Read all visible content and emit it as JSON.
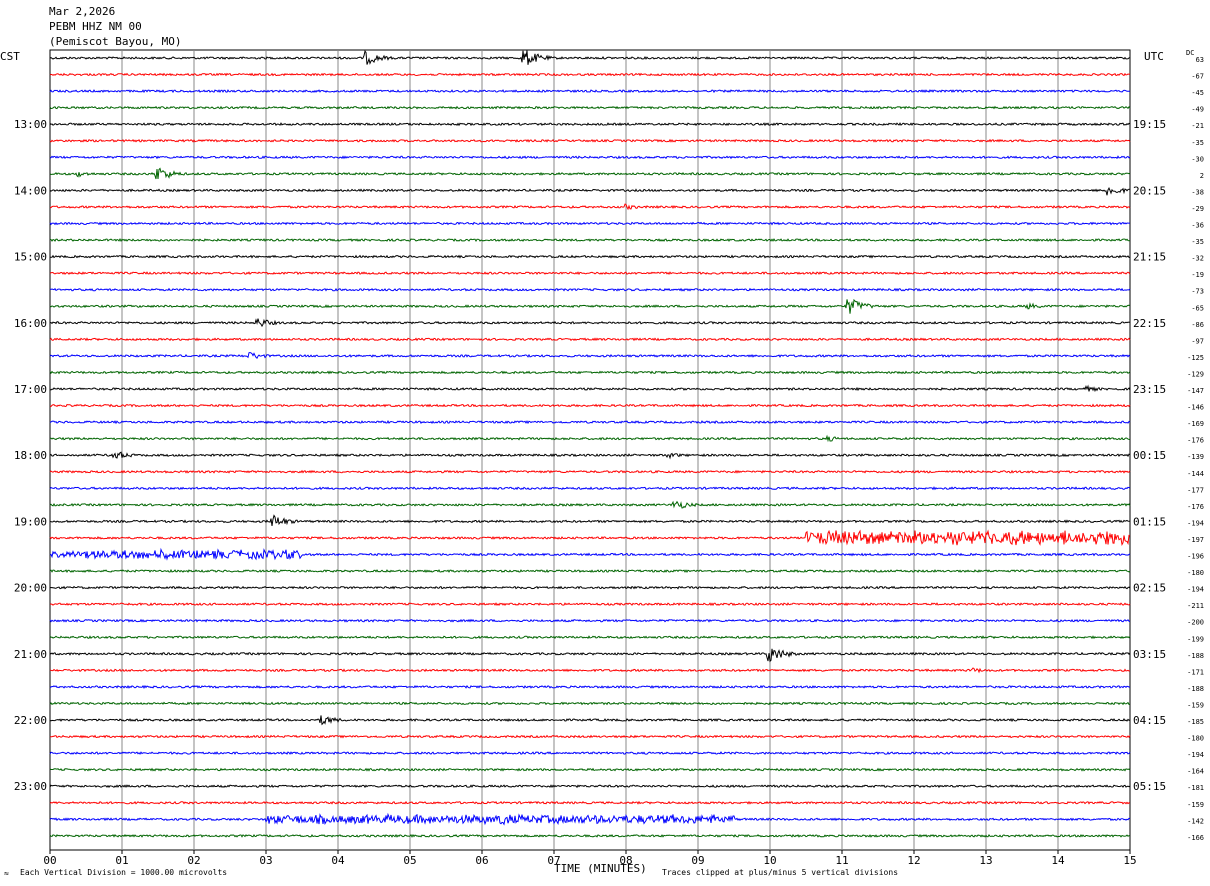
{
  "header": {
    "date": "Mar 2,2026",
    "station": "PEBM HHZ NM 00",
    "location": "(Pemiscot Bayou, MO)"
  },
  "labels": {
    "left_tz": "CST",
    "right_tz": "UTC",
    "dc_label": "DC",
    "xlabel": "TIME (MINUTES)",
    "scale_note": "Each Vertical Division = 1000.00 microvolts",
    "clip_note": "Traces clipped at plus/minus 5 vertical divisions",
    "corner_mark": "≈"
  },
  "colors": [
    "#000000",
    "#ff0000",
    "#0000ff",
    "#006400"
  ],
  "chart_data": {
    "type": "line",
    "title": "Mar 2,2026 PEBM HHZ NM 00 (Pemiscot Bayou, MO)",
    "xlabel": "TIME (MINUTES)",
    "x_ticks": [
      "00",
      "01",
      "02",
      "03",
      "04",
      "05",
      "06",
      "07",
      "08",
      "09",
      "10",
      "11",
      "12",
      "13",
      "14",
      "15"
    ],
    "xlim": [
      0,
      15
    ],
    "left_time_labels": [
      "13:00",
      "14:00",
      "15:00",
      "16:00",
      "17:00",
      "18:00",
      "19:00",
      "20:00",
      "21:00",
      "22:00",
      "23:00"
    ],
    "right_time_labels": [
      "19:15",
      "20:15",
      "21:15",
      "22:15",
      "23:15",
      "00:15",
      "01:15",
      "02:15",
      "03:15",
      "04:15",
      "05:15"
    ],
    "dc_offsets": [
      63,
      -67,
      -45,
      -49,
      -21,
      -35,
      -30,
      2,
      -38,
      -29,
      -36,
      -35,
      -32,
      -19,
      -73,
      -65,
      -86,
      -97,
      -125,
      -129,
      -147,
      -146,
      -169,
      -176,
      -139,
      -144,
      -177,
      -176,
      -194,
      -197,
      -196,
      -180,
      -194,
      -211,
      -200,
      -199,
      -188,
      -171,
      -188,
      -159,
      -185,
      -180,
      -194,
      -164,
      -181,
      -159,
      -142,
      -166
    ],
    "trace_count": 48,
    "trace_colors_cycle": [
      "black",
      "red",
      "blue",
      "green"
    ],
    "events": [
      {
        "trace": 0,
        "minute": 4.4,
        "amplitude": 7
      },
      {
        "trace": 0,
        "minute": 6.6,
        "amplitude": 9
      },
      {
        "trace": 7,
        "minute": 0.4,
        "amplitude": 3
      },
      {
        "trace": 7,
        "minute": 1.5,
        "amplitude": 8
      },
      {
        "trace": 8,
        "minute": 14.7,
        "amplitude": 6
      },
      {
        "trace": 9,
        "minute": 8.0,
        "amplitude": 3
      },
      {
        "trace": 15,
        "minute": 11.1,
        "amplitude": 9
      },
      {
        "trace": 15,
        "minute": 13.6,
        "amplitude": 3
      },
      {
        "trace": 16,
        "minute": 2.9,
        "amplitude": 5
      },
      {
        "trace": 18,
        "minute": 2.8,
        "amplitude": 4
      },
      {
        "trace": 20,
        "minute": 14.4,
        "amplitude": 3
      },
      {
        "trace": 23,
        "minute": 10.8,
        "amplitude": 3
      },
      {
        "trace": 24,
        "minute": 0.9,
        "amplitude": 5
      },
      {
        "trace": 24,
        "minute": 8.6,
        "amplitude": 3
      },
      {
        "trace": 27,
        "minute": 8.7,
        "amplitude": 5
      },
      {
        "trace": 28,
        "minute": 3.1,
        "amplitude": 7
      },
      {
        "trace": 36,
        "minute": 10.0,
        "amplitude": 9
      },
      {
        "trace": 37,
        "minute": 12.8,
        "amplitude": 3
      },
      {
        "trace": 40,
        "minute": 3.8,
        "amplitude": 5
      },
      {
        "trace": 46,
        "minute": 6.3,
        "amplitude": 7
      }
    ],
    "noisy_segments": [
      {
        "trace": 29,
        "from": 10.5,
        "to": 15,
        "amplitude": 8
      },
      {
        "trace": 30,
        "from": 0,
        "to": 3.5,
        "amplitude": 5
      },
      {
        "trace": 46,
        "from": 3.0,
        "to": 9.5,
        "amplitude": 5
      }
    ]
  }
}
